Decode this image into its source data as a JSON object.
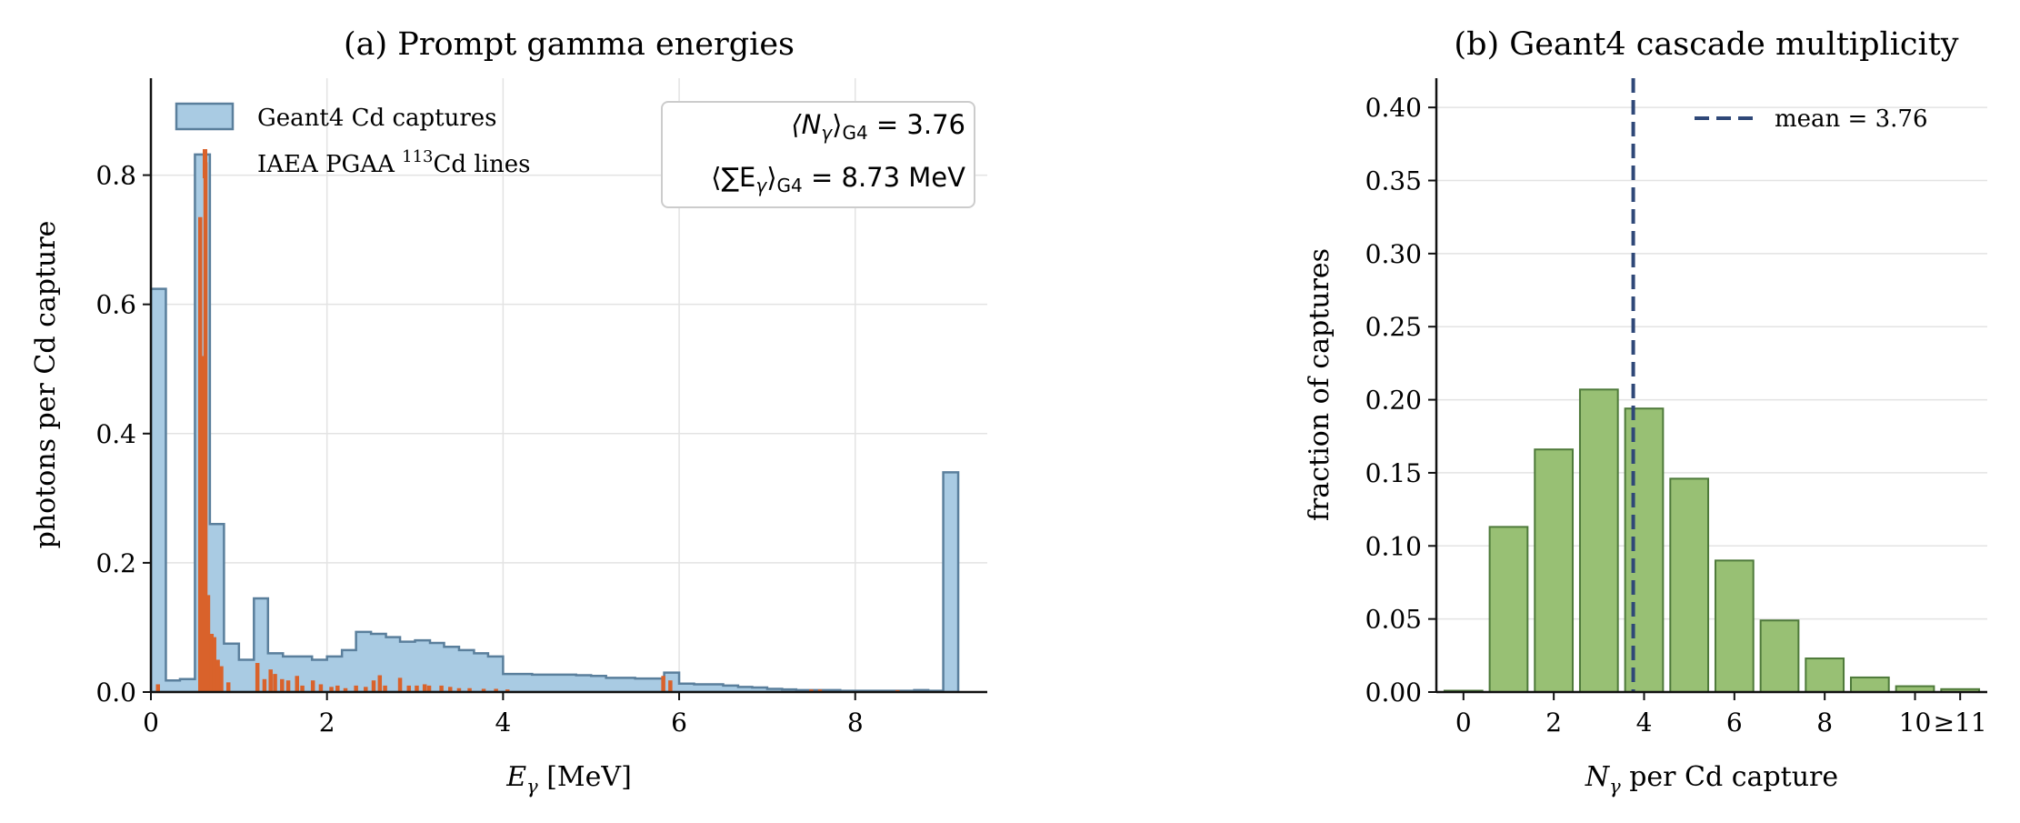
{
  "chart_data": [
    {
      "type": "bar",
      "title": "(a) Prompt gamma energies",
      "xlabel_var": "E",
      "xlabel_sub": "γ",
      "xlabel_unit": " [MeV]",
      "ylabel": "photons per Cd capture",
      "xlim": [
        0,
        9.5
      ],
      "ylim": [
        0,
        0.95
      ],
      "xticks": [
        0,
        2,
        4,
        6,
        8
      ],
      "yticks": [
        0.0,
        0.2,
        0.4,
        0.6,
        0.8
      ],
      "ytick_labels": [
        "0.0",
        "0.2",
        "0.4",
        "0.6",
        "0.8"
      ],
      "grid": true,
      "legend_placement": "top-left",
      "colors": {
        "hist_fill": "#a9cbe3",
        "hist_edge": "#5a7f9c",
        "lines": "#d9622b"
      },
      "series": [
        {
          "name": "Geant4 Cd captures",
          "kind": "step-histogram",
          "bin_edges": [
            0,
            0.17,
            0.33,
            0.5,
            0.67,
            0.83,
            1.0,
            1.17,
            1.33,
            1.5,
            1.67,
            1.83,
            2.0,
            2.17,
            2.33,
            2.5,
            2.67,
            2.83,
            3.0,
            3.17,
            3.33,
            3.5,
            3.67,
            3.83,
            4.0,
            4.17,
            4.33,
            4.5,
            4.67,
            4.83,
            5.0,
            5.17,
            5.33,
            5.5,
            5.67,
            5.83,
            6.0,
            6.17,
            6.33,
            6.5,
            6.67,
            6.83,
            7.0,
            7.17,
            7.33,
            7.5,
            7.67,
            7.83,
            8.0,
            8.17,
            8.33,
            8.5,
            8.67,
            8.83,
            9.0,
            9.17
          ],
          "values": [
            0.624,
            0.018,
            0.02,
            0.832,
            0.26,
            0.075,
            0.05,
            0.145,
            0.06,
            0.055,
            0.055,
            0.05,
            0.055,
            0.065,
            0.093,
            0.09,
            0.085,
            0.078,
            0.08,
            0.076,
            0.07,
            0.065,
            0.06,
            0.055,
            0.028,
            0.028,
            0.027,
            0.027,
            0.027,
            0.026,
            0.025,
            0.022,
            0.022,
            0.021,
            0.021,
            0.03,
            0.013,
            0.012,
            0.012,
            0.01,
            0.008,
            0.007,
            0.005,
            0.004,
            0.003,
            0.003,
            0.003,
            0.002,
            0.002,
            0.002,
            0.002,
            0.002,
            0.003,
            0.002,
            0.34
          ]
        },
        {
          "name": "IAEA PGAA ",
          "name_sup": "113",
          "name_rest": "Cd lines",
          "kind": "stick-lines",
          "x": [
            0.08,
            0.56,
            0.58,
            0.62,
            0.65,
            0.69,
            0.72,
            0.76,
            0.8,
            0.88,
            1.21,
            1.29,
            1.36,
            1.41,
            1.49,
            1.56,
            1.66,
            1.72,
            1.84,
            1.93,
            2.05,
            2.12,
            2.21,
            2.33,
            2.44,
            2.53,
            2.6,
            2.66,
            2.83,
            2.93,
            3.02,
            3.11,
            3.16,
            3.3,
            3.4,
            3.5,
            3.62,
            3.78,
            3.92,
            4.05,
            5.82,
            5.9,
            7.5,
            7.6,
            8.48
          ],
          "values": [
            0.012,
            0.735,
            0.52,
            0.82,
            0.15,
            0.09,
            0.085,
            0.05,
            0.04,
            0.015,
            0.045,
            0.02,
            0.035,
            0.028,
            0.02,
            0.018,
            0.025,
            0.01,
            0.018,
            0.012,
            0.008,
            0.01,
            0.006,
            0.01,
            0.008,
            0.018,
            0.026,
            0.01,
            0.022,
            0.01,
            0.01,
            0.012,
            0.01,
            0.01,
            0.008,
            0.006,
            0.006,
            0.005,
            0.005,
            0.004,
            0.025,
            0.018,
            0.004,
            0.004,
            0.003
          ]
        }
      ],
      "annotations": {
        "line1_lhs": "⟨N",
        "line1_sub": "γ",
        "line1_close": "⟩",
        "line1_sub2": "G4",
        "line1_rhs": " = 3.76",
        "line2_lhs": "⟨∑E",
        "line2_sub": "γ",
        "line2_close": "⟩",
        "line2_sub2": "G4",
        "line2_rhs": " = 8.73 MeV"
      }
    },
    {
      "type": "bar",
      "title": "(b) Geant4 cascade multiplicity",
      "xlabel_var": "N",
      "xlabel_sub": "γ",
      "xlabel_rest": " per Cd capture",
      "ylabel": "fraction of captures",
      "xlim": [
        -0.6,
        11.6
      ],
      "ylim": [
        0,
        0.42
      ],
      "xticks": [
        0,
        2,
        4,
        6,
        8,
        10,
        11
      ],
      "xtick_labels": [
        "0",
        "2",
        "4",
        "6",
        "8",
        "10",
        "≥11"
      ],
      "yticks": [
        0.0,
        0.05,
        0.1,
        0.15,
        0.2,
        0.25,
        0.3,
        0.35,
        0.4
      ],
      "ytick_labels": [
        "0.00",
        "0.05",
        "0.10",
        "0.15",
        "0.20",
        "0.25",
        "0.30",
        "0.35",
        "0.40"
      ],
      "grid": true,
      "legend_placement": "top-right",
      "colors": {
        "bar_fill": "#98c074",
        "bar_edge": "#4e7a3a",
        "mean_line": "#2f4878"
      },
      "categories": [
        0,
        1,
        2,
        3,
        4,
        5,
        6,
        7,
        8,
        9,
        10,
        11
      ],
      "values": [
        0.0,
        0.113,
        0.166,
        0.207,
        0.194,
        0.146,
        0.09,
        0.049,
        0.023,
        0.01,
        0.004,
        0.002
      ],
      "mean_line": {
        "x": 3.76,
        "label": "mean = 3.76"
      }
    }
  ]
}
